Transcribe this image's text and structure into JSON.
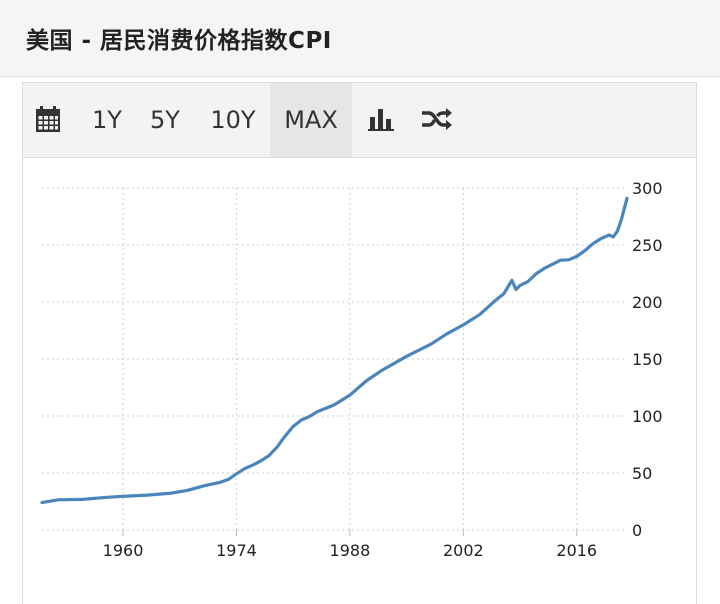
{
  "header": {
    "title": "美国 - 居民消费价格指数CPI"
  },
  "toolbar": {
    "items": [
      {
        "label": "1Y"
      },
      {
        "label": "5Y"
      },
      {
        "label": "10Y"
      },
      {
        "label": "MAX",
        "active": true
      }
    ],
    "icons": [
      "calendar-icon",
      "bar-chart-icon",
      "shuffle-icon"
    ]
  },
  "colors": {
    "line": "#4a85bb",
    "grid": "#cfcfcf",
    "header_bg": "#f5f5f5",
    "toolbar_bg": "#f3f3f3"
  },
  "chart_data": {
    "type": "line",
    "title": "",
    "xlabel": "",
    "ylabel": "",
    "xlim": [
      1950,
      2022.2
    ],
    "ylim": [
      0,
      300
    ],
    "grid": true,
    "x_ticks": [
      1960,
      1974,
      1988,
      2002,
      2016
    ],
    "y_ticks": [
      0,
      50,
      100,
      150,
      200,
      250,
      300
    ],
    "series": [
      {
        "x": [
          1950,
          1952,
          1955,
          1958,
          1960,
          1963,
          1966,
          1968,
          1970,
          1972,
          1973,
          1974,
          1975,
          1976,
          1977,
          1978,
          1979,
          1980,
          1981,
          1982,
          1983,
          1984,
          1986,
          1988,
          1990,
          1992,
          1995,
          1998,
          2000,
          2002,
          2004,
          2006,
          2007,
          2008,
          2008.5,
          2009,
          2010,
          2011,
          2012,
          2014,
          2015,
          2016,
          2017,
          2018,
          2019,
          2020,
          2020.5,
          2021,
          2021.5,
          2022.2
        ],
        "values": [
          24,
          26.5,
          26.8,
          28.7,
          29.6,
          30.6,
          32.4,
          34.8,
          38.8,
          41.8,
          44.4,
          49.3,
          53.8,
          56.9,
          60.6,
          65.2,
          72.6,
          82.4,
          90.9,
          96.5,
          99.6,
          103.9,
          109.6,
          118.3,
          130.7,
          140.3,
          152.4,
          163.0,
          172.2,
          179.9,
          188.9,
          201.6,
          207.3,
          219.0,
          211.0,
          214.5,
          218.1,
          224.9,
          229.6,
          236.7,
          237.0,
          240.0,
          245.1,
          251.1,
          255.7,
          258.8,
          257.0,
          262.0,
          272.0,
          291.0
        ]
      }
    ]
  }
}
